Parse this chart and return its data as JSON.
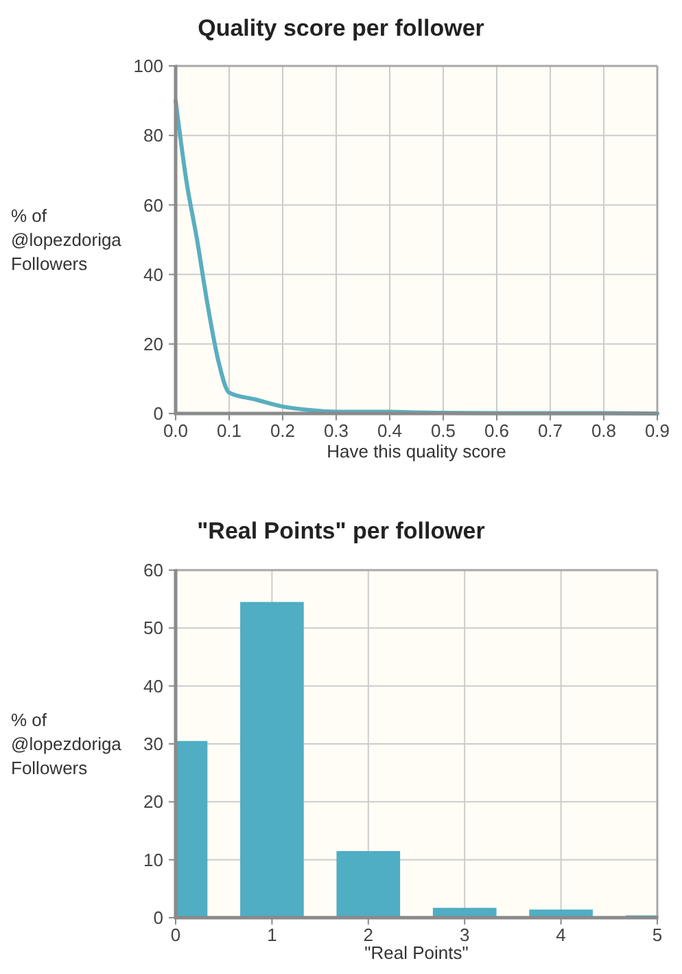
{
  "chart_data": [
    {
      "type": "line",
      "title": "Quality score per follower",
      "xlabel": "Have this quality score",
      "ylabel": "% of @lopezdoriga Followers",
      "x": [
        0,
        0.02,
        0.04,
        0.06,
        0.08,
        0.1,
        0.15,
        0.2,
        0.25,
        0.3,
        0.35,
        0.4,
        0.45,
        0.5,
        0.6,
        0.7,
        0.8,
        0.9
      ],
      "series": [
        {
          "color": "#5aaebf",
          "values": [
            90,
            67,
            50,
            31,
            15,
            6,
            4,
            2,
            1,
            0.5,
            0.5,
            0.5,
            0.3,
            0.2,
            0.1,
            0.1,
            0.1,
            0
          ]
        }
      ],
      "xlim": [
        0,
        0.9
      ],
      "xticks": [
        {
          "value": 0,
          "label": "0.0"
        },
        0.1,
        0.2,
        0.3,
        0.4,
        0.5,
        0.6,
        0.7,
        0.8,
        0.9
      ],
      "ylim": [
        0,
        100
      ],
      "yticks": [
        0,
        20,
        40,
        60,
        80,
        100
      ],
      "grid": true
    },
    {
      "type": "bar",
      "title": "\"Real Points\" per follower",
      "xlabel": "\"Real Points\"",
      "ylabel": "% of @lopezdoriga Followers",
      "x": [
        0,
        1,
        2,
        3,
        4,
        5
      ],
      "values": [
        30.5,
        54.5,
        11.5,
        1.7,
        1.4,
        0.4
      ],
      "color": "#4fadc4",
      "xlim": [
        0,
        5
      ],
      "xticks": [
        0,
        1,
        2,
        3,
        4,
        5
      ],
      "ylim": [
        0,
        60
      ],
      "yticks": [
        0,
        10,
        20,
        30,
        40,
        50,
        60
      ],
      "grid": true
    }
  ]
}
